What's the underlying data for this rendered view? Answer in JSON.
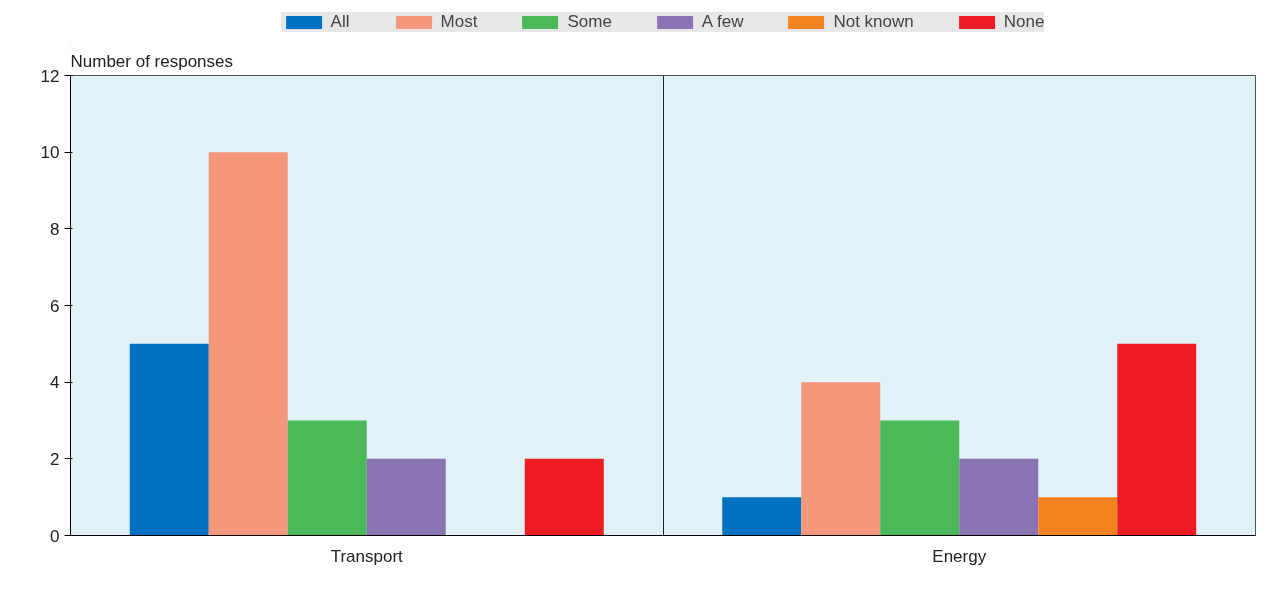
{
  "chart_data": {
    "type": "bar",
    "ylabel": "Number of responses",
    "categories": [
      "Transport",
      "Energy"
    ],
    "series": [
      {
        "name": "All",
        "color": "#0070c0",
        "values": [
          5,
          1
        ]
      },
      {
        "name": "Most",
        "color": "#f4977a",
        "values": [
          10,
          4
        ]
      },
      {
        "name": "Some",
        "color": "#4cb958",
        "values": [
          3,
          3
        ]
      },
      {
        "name": "A few",
        "color": "#8a74b4",
        "values": [
          2,
          2
        ]
      },
      {
        "name": "Not known",
        "color": "#f58220",
        "values": [
          0,
          1
        ]
      },
      {
        "name": "None",
        "color": "#ed1c24",
        "values": [
          2,
          5
        ]
      }
    ],
    "ylim": [
      0,
      12
    ],
    "yticks": [
      0,
      2,
      4,
      6,
      8,
      10,
      12
    ],
    "grid": false,
    "legend": "top"
  }
}
